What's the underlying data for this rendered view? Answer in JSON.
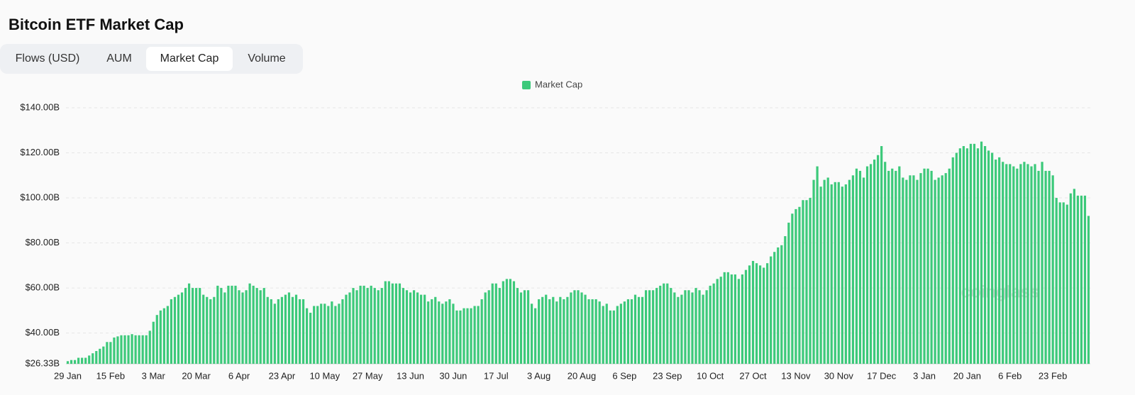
{
  "title": "Bitcoin ETF Market Cap",
  "tabs": [
    "Flows (USD)",
    "AUM",
    "Market Cap",
    "Volume"
  ],
  "active_tab": 2,
  "watermark": "coinglass",
  "chart_data": {
    "type": "bar",
    "categories": [
      "29 Jan",
      null,
      null,
      null,
      null,
      null,
      null,
      null,
      null,
      null,
      null,
      null,
      "15 Feb",
      null,
      null,
      null,
      null,
      null,
      null,
      null,
      null,
      null,
      null,
      null,
      "3 Mar",
      null,
      null,
      null,
      null,
      null,
      null,
      null,
      null,
      null,
      null,
      null,
      "20 Mar",
      null,
      null,
      null,
      null,
      null,
      null,
      null,
      null,
      null,
      null,
      null,
      "6 Apr",
      null,
      null,
      null,
      null,
      null,
      null,
      null,
      null,
      null,
      null,
      null,
      "23 Apr",
      null,
      null,
      null,
      null,
      null,
      null,
      null,
      null,
      null,
      null,
      null,
      "10 May",
      null,
      null,
      null,
      null,
      null,
      null,
      null,
      null,
      null,
      null,
      null,
      "27 May",
      null,
      null,
      null,
      null,
      null,
      null,
      null,
      null,
      null,
      null,
      null,
      "13 Jun",
      null,
      null,
      null,
      null,
      null,
      null,
      null,
      null,
      null,
      null,
      null,
      "30 Jun",
      null,
      null,
      null,
      null,
      null,
      null,
      null,
      null,
      null,
      null,
      null,
      "17 Jul",
      null,
      null,
      null,
      null,
      null,
      null,
      null,
      null,
      null,
      null,
      null,
      "3 Aug",
      null,
      null,
      null,
      null,
      null,
      null,
      null,
      null,
      null,
      null,
      null,
      "20 Aug",
      null,
      null,
      null,
      null,
      null,
      null,
      null,
      null,
      null,
      null,
      null,
      "6 Sep",
      null,
      null,
      null,
      null,
      null,
      null,
      null,
      null,
      null,
      null,
      null,
      "23 Sep",
      null,
      null,
      null,
      null,
      null,
      null,
      null,
      null,
      null,
      null,
      null,
      "10 Oct",
      null,
      null,
      null,
      null,
      null,
      null,
      null,
      null,
      null,
      null,
      null,
      "27 Oct",
      null,
      null,
      null,
      null,
      null,
      null,
      null,
      null,
      null,
      null,
      null,
      "13 Nov",
      null,
      null,
      null,
      null,
      null,
      null,
      null,
      null,
      null,
      null,
      null,
      "30 Nov",
      null,
      null,
      null,
      null,
      null,
      null,
      null,
      null,
      null,
      null,
      null,
      "17 Dec",
      null,
      null,
      null,
      null,
      null,
      null,
      null,
      null,
      null,
      null,
      null,
      "3 Jan",
      null,
      null,
      null,
      null,
      null,
      null,
      null,
      null,
      null,
      null,
      null,
      "20 Jan",
      null,
      null,
      null,
      null,
      null,
      null,
      null,
      null,
      null,
      null,
      null,
      "6 Feb",
      null,
      null,
      null,
      null,
      null,
      null,
      null,
      null,
      null,
      null,
      null,
      "23 Feb",
      null,
      null,
      null,
      null,
      null,
      null,
      null,
      null,
      null,
      null
    ],
    "series": [
      {
        "name": "Market Cap",
        "color": "#3cc97a",
        "values": [
          27.5,
          28,
          28,
          29,
          29,
          29,
          30,
          31,
          32,
          33,
          34,
          36,
          36,
          38,
          38.5,
          39,
          39,
          39,
          39.5,
          39,
          39,
          39,
          39,
          41,
          45,
          48,
          50,
          51,
          52,
          55,
          56,
          57,
          58,
          60,
          62,
          60,
          60,
          60,
          57,
          56,
          55,
          56,
          61,
          60,
          58,
          61,
          61,
          61,
          59,
          58,
          59,
          62,
          61,
          60,
          59,
          60,
          56,
          55,
          53,
          55,
          56,
          57,
          58,
          56,
          57,
          55,
          55,
          51,
          49,
          52,
          52,
          53,
          53,
          52,
          54,
          52,
          53,
          55,
          57,
          58,
          60,
          59,
          61,
          61,
          60,
          61,
          60,
          59,
          60,
          63,
          63,
          62,
          62,
          62,
          60,
          59,
          58,
          59,
          58,
          57,
          57,
          54,
          55,
          56,
          54,
          53,
          54,
          55,
          53,
          50,
          50,
          51,
          51,
          51,
          52,
          52,
          55,
          58,
          59,
          62,
          62,
          60,
          63,
          64,
          64,
          63,
          60,
          58,
          59,
          59,
          53,
          51,
          55,
          56,
          57,
          55,
          56,
          54,
          56,
          55,
          56,
          58,
          59,
          59,
          58,
          57,
          55,
          55,
          55,
          54,
          52,
          53,
          50,
          50,
          52,
          53,
          54,
          55,
          55,
          57,
          56,
          56,
          59,
          59,
          59,
          60,
          61,
          62,
          62,
          60,
          58,
          56,
          57,
          59,
          59,
          58,
          60,
          59,
          57,
          59,
          61,
          62,
          64,
          65,
          67,
          67,
          66,
          66,
          64,
          66,
          68,
          70,
          72,
          71,
          70,
          69,
          71,
          74,
          76,
          78,
          79,
          83,
          89,
          93,
          95,
          96,
          99,
          99,
          100,
          108,
          114,
          105,
          108,
          109,
          106,
          107,
          107,
          105,
          106,
          108,
          110,
          113,
          112,
          109,
          114,
          115,
          117,
          119,
          123,
          116,
          112,
          113,
          112,
          114,
          109,
          108,
          110,
          110,
          108,
          111,
          113,
          113,
          112,
          108,
          109,
          110,
          111,
          113,
          118,
          120,
          122,
          123,
          122,
          124,
          124,
          122,
          125,
          123,
          121,
          120,
          117,
          118,
          116,
          115,
          115,
          114,
          113,
          115,
          116,
          115,
          114,
          115,
          112,
          116,
          112,
          112,
          110,
          100,
          98,
          98,
          97,
          102,
          104,
          101,
          101,
          101,
          92
        ]
      }
    ],
    "ylim": [
      26.33,
      140
    ],
    "yticks": [
      {
        "value": 26.33,
        "label": "$26.33B"
      },
      {
        "value": 40,
        "label": "$40.00B"
      },
      {
        "value": 60,
        "label": "$60.00B"
      },
      {
        "value": 80,
        "label": "$80.00B"
      },
      {
        "value": 100,
        "label": "$100.00B"
      },
      {
        "value": 120,
        "label": "$120.00B"
      },
      {
        "value": 140,
        "label": "$140.00B"
      }
    ],
    "grid": true,
    "legend": "top"
  }
}
